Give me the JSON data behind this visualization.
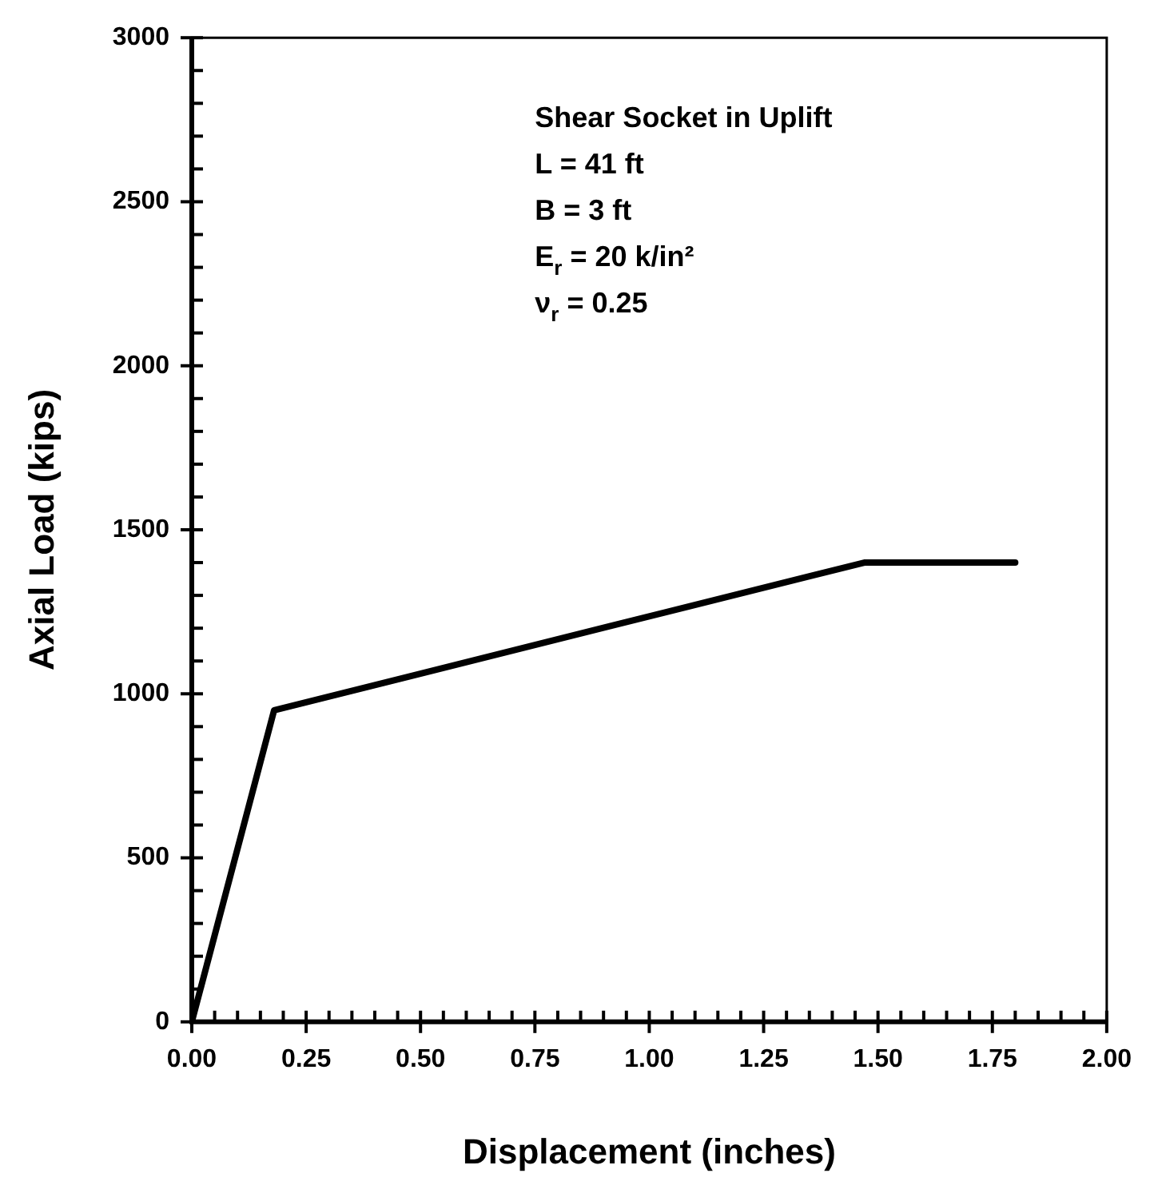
{
  "chart_data": {
    "type": "line",
    "xlabel": "Displacement (inches)",
    "ylabel": "Axial Load (kips)",
    "annotations": [
      "Shear Socket in Uplift",
      "L = 41 ft",
      "B = 3 ft",
      "E$_{r}$ = 20 k/in²",
      "ν$_{r}$ = 0.25"
    ],
    "series": [
      {
        "color": "#000000",
        "x": [
          0,
          0.18,
          1.47,
          1.8
        ],
        "values": [
          0,
          950,
          1400,
          1400
        ]
      }
    ],
    "xlim": [
      0,
      2
    ],
    "ylim": [
      0,
      3000
    ],
    "xticks": [
      {
        "value": 0,
        "label": "0.00"
      },
      {
        "value": 0.05,
        "label": null
      },
      {
        "value": 0.1,
        "label": null
      },
      {
        "value": 0.15,
        "label": null
      },
      {
        "value": 0.2,
        "label": null
      },
      {
        "value": 0.25,
        "label": "0.25"
      },
      {
        "value": 0.3,
        "label": null
      },
      {
        "value": 0.35,
        "label": null
      },
      {
        "value": 0.4,
        "label": null
      },
      {
        "value": 0.45,
        "label": null
      },
      {
        "value": 0.5,
        "label": "0.50"
      },
      {
        "value": 0.55,
        "label": null
      },
      {
        "value": 0.6,
        "label": null
      },
      {
        "value": 0.65,
        "label": null
      },
      {
        "value": 0.7,
        "label": null
      },
      {
        "value": 0.75,
        "label": "0.75"
      },
      {
        "value": 0.8,
        "label": null
      },
      {
        "value": 0.85,
        "label": null
      },
      {
        "value": 0.9,
        "label": null
      },
      {
        "value": 0.95,
        "label": null
      },
      {
        "value": 1,
        "label": "1.00"
      },
      {
        "value": 1.05,
        "label": null
      },
      {
        "value": 1.1,
        "label": null
      },
      {
        "value": 1.15,
        "label": null
      },
      {
        "value": 1.2,
        "label": null
      },
      {
        "value": 1.25,
        "label": "1.25"
      },
      {
        "value": 1.3,
        "label": null
      },
      {
        "value": 1.35,
        "label": null
      },
      {
        "value": 1.4,
        "label": null
      },
      {
        "value": 1.45,
        "label": null
      },
      {
        "value": 1.5,
        "label": "1.50"
      },
      {
        "value": 1.55,
        "label": null
      },
      {
        "value": 1.6,
        "label": null
      },
      {
        "value": 1.65,
        "label": null
      },
      {
        "value": 1.7,
        "label": null
      },
      {
        "value": 1.75,
        "label": "1.75"
      },
      {
        "value": 1.8,
        "label": null
      },
      {
        "value": 1.85,
        "label": null
      },
      {
        "value": 1.9,
        "label": null
      },
      {
        "value": 1.95,
        "label": null
      },
      {
        "value": 2,
        "label": "2.00"
      }
    ],
    "yticks": [
      0,
      {
        "value": 100,
        "label": null
      },
      {
        "value": 200,
        "label": null
      },
      {
        "value": 300,
        "label": null
      },
      {
        "value": 400,
        "label": null
      },
      500,
      {
        "value": 600,
        "label": null
      },
      {
        "value": 700,
        "label": null
      },
      {
        "value": 800,
        "label": null
      },
      {
        "value": 900,
        "label": null
      },
      1000,
      {
        "value": 1100,
        "label": null
      },
      {
        "value": 1200,
        "label": null
      },
      {
        "value": 1300,
        "label": null
      },
      {
        "value": 1400,
        "label": null
      },
      1500,
      {
        "value": 1600,
        "label": null
      },
      {
        "value": 1700,
        "label": null
      },
      {
        "value": 1800,
        "label": null
      },
      {
        "value": 1900,
        "label": null
      },
      2000,
      {
        "value": 2100,
        "label": null
      },
      {
        "value": 2200,
        "label": null
      },
      {
        "value": 2300,
        "label": null
      },
      {
        "value": 2400,
        "label": null
      },
      2500,
      {
        "value": 2600,
        "label": null
      },
      {
        "value": 2700,
        "label": null
      },
      {
        "value": 2800,
        "label": null
      },
      {
        "value": 2900,
        "label": null
      },
      3000
    ],
    "grid": false,
    "legend": false,
    "marker": "none",
    "line_style": "solid"
  }
}
